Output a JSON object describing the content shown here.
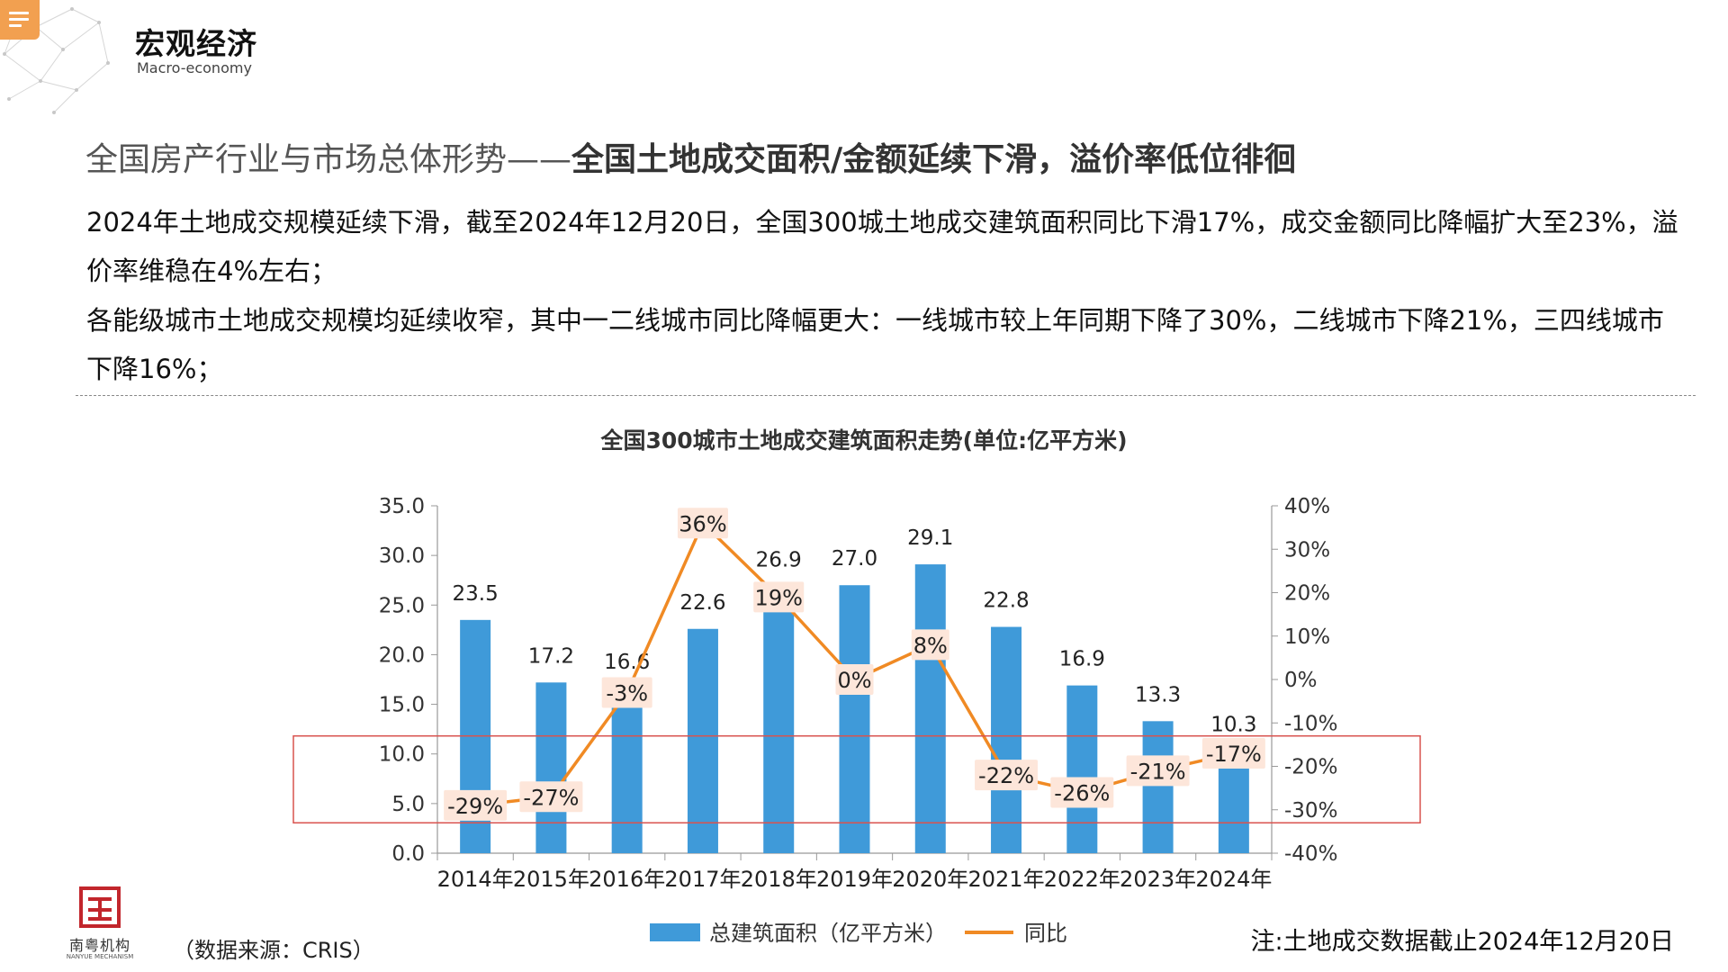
{
  "header": {
    "title": "宏观经济",
    "subtitle": "Macro-economy"
  },
  "headline": {
    "prefix": "全国房产行业与市场总体形势——",
    "emphasis": "全国土地成交面积/金额延续下滑，溢价率低位徘徊"
  },
  "paragraphs": [
    "2024年土地成交规模延续下滑，截至2024年12月20日，全国300城土地成交建筑面积同比下滑17%，成交金额同比降幅扩大至23%，溢价率维稳在4%左右；",
    "各能级城市土地成交规模均延续收窄，其中一二线城市同比降幅更大：一线城市较上年同期下降了30%，二线城市下降21%，三四线城市下降16%；"
  ],
  "chart_data": {
    "type": "bar",
    "title": "全国300城市土地成交建筑面积走势(单位:亿平方米)",
    "categories": [
      "2014年",
      "2015年",
      "2016年",
      "2017年",
      "2018年",
      "2019年",
      "2020年",
      "2021年",
      "2022年",
      "2023年",
      "2024年"
    ],
    "series": [
      {
        "name": "总建筑面积（亿平方米）",
        "type": "bar",
        "axis": "left",
        "color": "#3f9ad9",
        "values": [
          23.5,
          17.2,
          16.6,
          22.6,
          26.9,
          27.0,
          29.1,
          22.8,
          16.9,
          13.3,
          10.3
        ],
        "labels": [
          "23.5",
          "17.2",
          "16.6",
          "22.6",
          "26.9",
          "27.0",
          "29.1",
          "22.8",
          "16.9",
          "13.3",
          "10.3"
        ]
      },
      {
        "name": "同比",
        "type": "line",
        "axis": "right",
        "color": "#f08a24",
        "values": [
          -29,
          -27,
          -3,
          36,
          19,
          0,
          8,
          -22,
          -26,
          -21,
          -17
        ],
        "labels": [
          "-29%",
          "-27%",
          "-3%",
          "36%",
          "19%",
          "0%",
          "8%",
          "-22%",
          "-26%",
          "-21%",
          "-17%"
        ]
      }
    ],
    "y_left": {
      "range": [
        0,
        35
      ],
      "ticks": [
        "0.0",
        "5.0",
        "10.0",
        "15.0",
        "20.0",
        "25.0",
        "30.0",
        "35.0"
      ]
    },
    "y_right": {
      "range": [
        -40,
        40
      ],
      "ticks": [
        "-40%",
        "-30%",
        "-20%",
        "-10%",
        "0%",
        "10%",
        "20%",
        "30%",
        "40%"
      ]
    },
    "grid": false,
    "legend": "bottom",
    "highlight_band_right_axis": [
      -33,
      -13
    ],
    "highlight_color": "#d9534f"
  },
  "footer": {
    "logo_cn": "南粤机构",
    "logo_en": "NANYUE MECHANISM",
    "source": "（数据来源：CRIS）",
    "note": "注:土地成交数据截止2024年12月20日"
  }
}
